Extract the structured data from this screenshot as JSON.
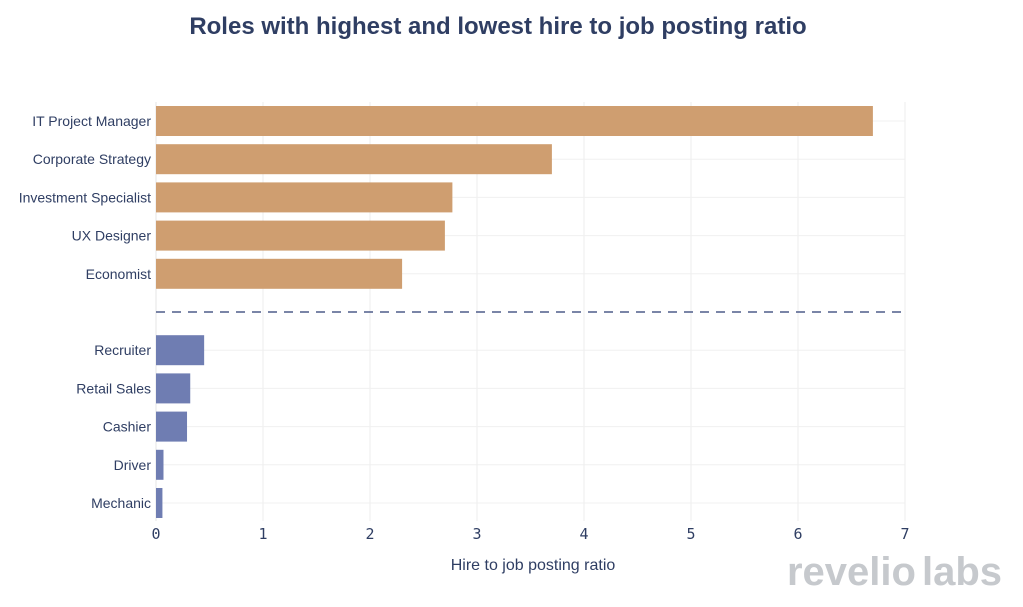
{
  "chart_data": {
    "type": "bar",
    "orientation": "horizontal",
    "title": "Roles with highest and lowest hire to job posting ratio",
    "xlabel": "Hire to job posting ratio",
    "ylabel": "",
    "xlim": [
      0,
      7
    ],
    "xticks": [
      "0",
      "1",
      "2",
      "3",
      "4",
      "5",
      "6",
      "7"
    ],
    "grid": true,
    "groups": [
      {
        "color": "#cf9e70",
        "categories": [
          "IT Project Manager",
          "Corporate Strategy",
          "Investment Specialist",
          "UX Designer",
          "Economist"
        ],
        "values": [
          6.7,
          3.7,
          2.77,
          2.7,
          2.3
        ]
      },
      {
        "color": "#6f7db2",
        "categories": [
          "Recruiter",
          "Retail Sales",
          "Cashier",
          "Driver",
          "Mechanic"
        ],
        "values": [
          0.45,
          0.32,
          0.29,
          0.07,
          0.06
        ]
      }
    ],
    "separator": "dashed",
    "separator_color": "#4f5d8a"
  },
  "logo": {
    "part1": "revelio",
    "part2": "labs",
    "color": "#c6c9cd"
  }
}
